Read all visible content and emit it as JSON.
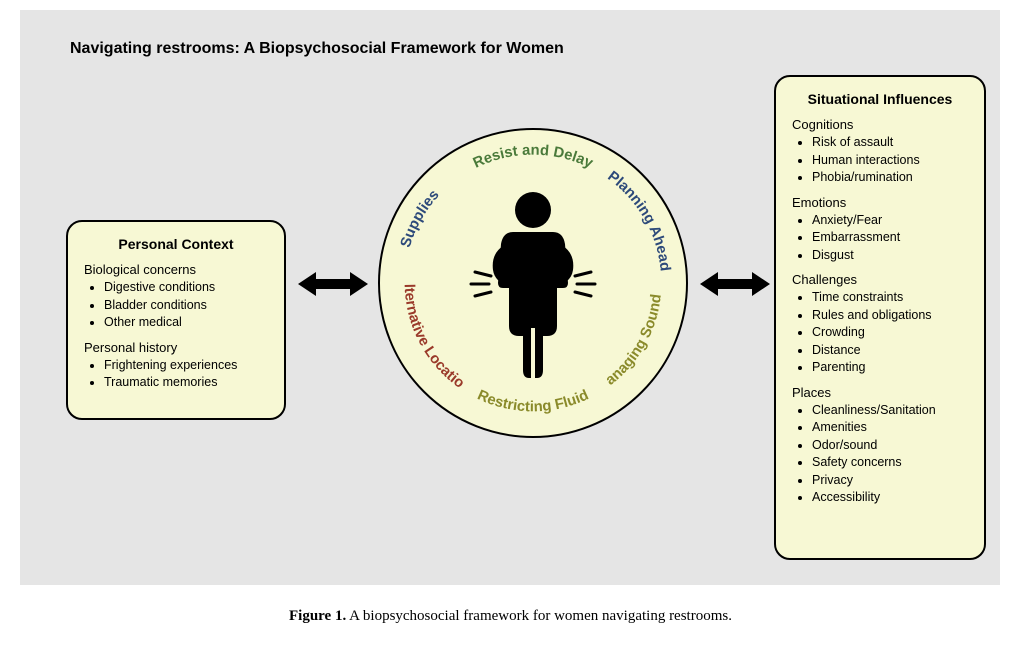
{
  "colors": {
    "page_bg": "#ffffff",
    "frame_bg": "#e5e5e5",
    "panel_bg": "#f7f8d4",
    "panel_border": "#000000",
    "icon_color": "#000000",
    "ring_green": "#4a7a3a",
    "ring_blue": "#2d4a7a",
    "ring_olive": "#8a8a2a",
    "ring_red": "#9a3a2a"
  },
  "title": "Navigating restrooms: A Biopsychosocial Framework for Women",
  "left_panel": {
    "title": "Personal Context",
    "sections": [
      {
        "heading": "Biological concerns",
        "items": [
          "Digestive conditions",
          "Bladder conditions",
          "Other medical"
        ]
      },
      {
        "heading": "Personal history",
        "items": [
          "Frightening experiences",
          "Traumatic memories"
        ]
      }
    ]
  },
  "right_panel": {
    "title": "Situational Influences",
    "sections": [
      {
        "heading": "Cognitions",
        "items": [
          "Risk of assault",
          "Human interactions",
          "Phobia/rumination"
        ]
      },
      {
        "heading": "Emotions",
        "items": [
          "Anxiety/Fear",
          "Embarrassment",
          "Disgust"
        ]
      },
      {
        "heading": "Challenges",
        "items": [
          "Time constraints",
          "Rules and obligations",
          "Crowding",
          "Distance",
          "Parenting"
        ]
      },
      {
        "heading": "Places",
        "items": [
          "Cleanliness/Sanitation",
          "Amenities",
          "Odor/sound",
          "Safety concerns",
          "Privacy",
          "Accessibility"
        ]
      }
    ]
  },
  "ring_labels": [
    {
      "text": "Resist and Delay",
      "color": "#4a7a3a",
      "start_angle": -115,
      "arc_len": 50
    },
    {
      "text": "Planning Ahead",
      "color": "#2d4a7a",
      "start_angle": -55,
      "arc_len": 50
    },
    {
      "text": "Managing Sounds",
      "color": "#8a8a2a",
      "start_angle": 5,
      "arc_len": 50
    },
    {
      "text": "Restricting Fluid",
      "color": "#8a8a2a",
      "start_angle": 65,
      "arc_len": 50
    },
    {
      "text": "Alternative Location",
      "color": "#9a3a2a",
      "start_angle": 125,
      "arc_len": 55
    },
    {
      "text": "Supplies",
      "color": "#2d4a7a",
      "start_angle": -168,
      "arc_len": 35
    }
  ],
  "caption_bold": "Figure 1.",
  "caption_text": " A biopsychosocial framework for women navigating restrooms."
}
